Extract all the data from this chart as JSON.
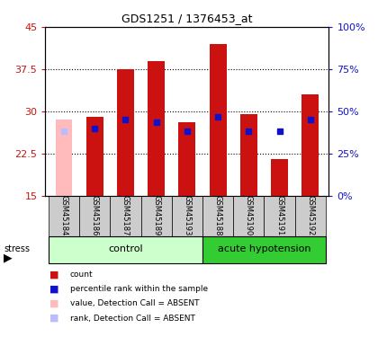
{
  "title": "GDS1251 / 1376453_at",
  "samples": [
    "GSM45184",
    "GSM45186",
    "GSM45187",
    "GSM45189",
    "GSM45193",
    "GSM45188",
    "GSM45190",
    "GSM45191",
    "GSM45192"
  ],
  "red_values": [
    0,
    29.0,
    37.5,
    39.0,
    28.0,
    42.0,
    29.5,
    21.5,
    33.0
  ],
  "blue_values": [
    26.5,
    27.0,
    28.5,
    28.0,
    26.5,
    29.0,
    26.5,
    26.5,
    28.5
  ],
  "absent_red_values": [
    28.5,
    0,
    0,
    0,
    0,
    0,
    0,
    0,
    0
  ],
  "absent_blue_values": [
    26.5,
    0,
    0,
    0,
    0,
    0,
    0,
    0,
    0
  ],
  "groups": [
    {
      "label": "control",
      "indices": [
        0,
        1,
        2,
        3,
        4
      ],
      "light_color": "#ccffcc",
      "dark_color": "#66cc66"
    },
    {
      "label": "acute hypotension",
      "indices": [
        5,
        6,
        7,
        8
      ],
      "light_color": "#ccffcc",
      "dark_color": "#33cc33"
    }
  ],
  "ylim": [
    15,
    45
  ],
  "yticks_left": [
    15,
    22.5,
    30,
    37.5,
    45
  ],
  "bar_width": 0.55,
  "red_color": "#cc1111",
  "blue_color": "#1111cc",
  "absent_red_color": "#ffbbbb",
  "absent_blue_color": "#bbbbff",
  "label_bg_color": "#cccccc",
  "legend_items": [
    {
      "color": "#cc1111",
      "label": "count"
    },
    {
      "color": "#1111cc",
      "label": "percentile rank within the sample"
    },
    {
      "color": "#ffbbbb",
      "label": "value, Detection Call = ABSENT"
    },
    {
      "color": "#bbbbff",
      "label": "rank, Detection Call = ABSENT"
    }
  ]
}
